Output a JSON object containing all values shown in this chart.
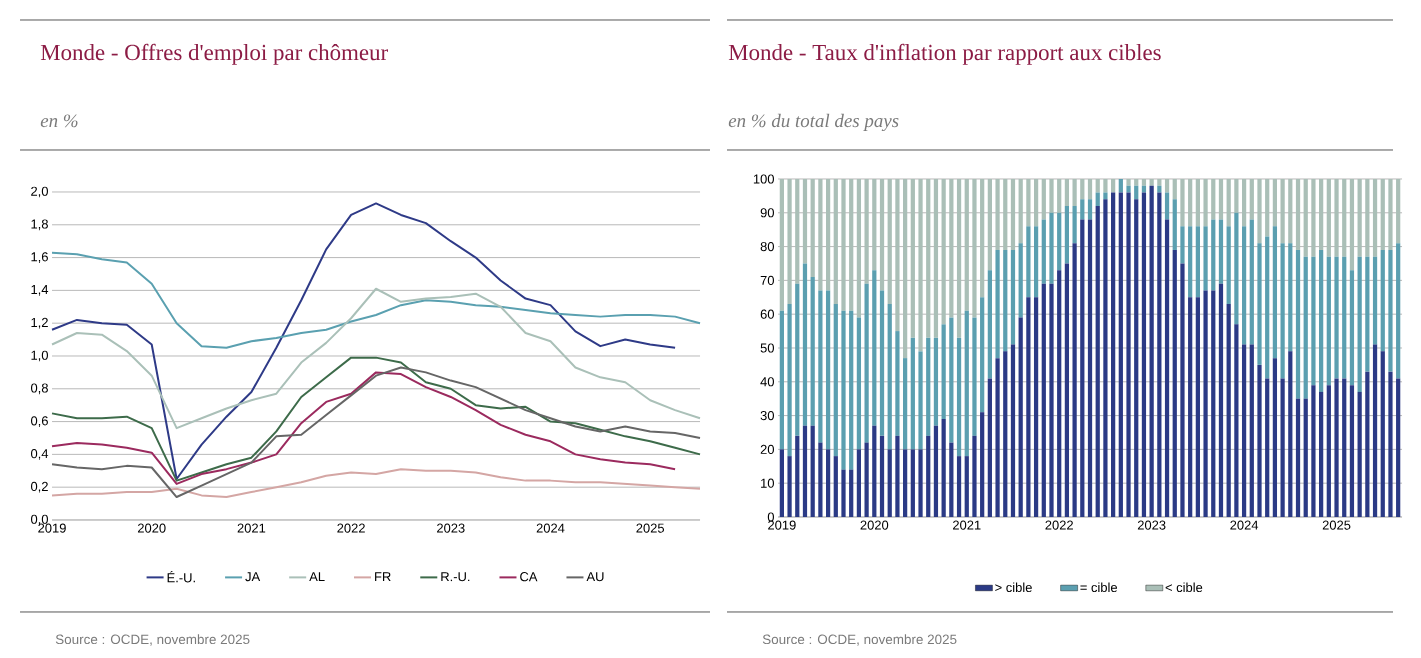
{
  "chart_data": [
    {
      "type": "line",
      "title": "Monde - Offres d'emploi par chômeur",
      "subtitle": "en %",
      "x": [
        2019,
        2019.25,
        2019.5,
        2019.75,
        2020,
        2020.25,
        2020.5,
        2020.75,
        2021,
        2021.25,
        2021.5,
        2021.75,
        2022,
        2022.25,
        2022.5,
        2022.75,
        2023,
        2023.25,
        2023.5,
        2023.75,
        2024,
        2024.25,
        2024.5,
        2024.75,
        2025,
        2025.25,
        2025.5
      ],
      "xlim": [
        2019,
        2025.5
      ],
      "xticks": [
        2019,
        2020,
        2021,
        2022,
        2023,
        2024,
        2025
      ],
      "ylim": [
        0,
        2
      ],
      "yticks": [
        {
          "value": 0,
          "label": "0,0"
        },
        {
          "value": 0.2,
          "label": "0,2"
        },
        {
          "value": 0.4,
          "label": "0,4"
        },
        {
          "value": 0.6,
          "label": "0,6"
        },
        {
          "value": 0.8,
          "label": "0,8"
        },
        {
          "value": 1,
          "label": "1,0"
        },
        {
          "value": 1.2,
          "label": "1,2"
        },
        {
          "value": 1.4,
          "label": "1,4"
        },
        {
          "value": 1.6,
          "label": "1,6"
        },
        {
          "value": 1.8,
          "label": "1,8"
        },
        {
          "value": 2,
          "label": "2,0"
        }
      ],
      "grid": "y",
      "legend": "bottom",
      "series": [
        {
          "name": "É.-U.",
          "color": "#2e3a87",
          "values": [
            1.16,
            1.22,
            1.2,
            1.19,
            1.07,
            0.25,
            0.46,
            0.63,
            0.78,
            1.05,
            1.34,
            1.65,
            1.86,
            1.93,
            1.86,
            1.81,
            1.7,
            1.6,
            1.46,
            1.35,
            1.31,
            1.15,
            1.06,
            1.1,
            1.07,
            1.05,
            null
          ]
        },
        {
          "name": "JA",
          "color": "#5aa0b0",
          "values": [
            1.63,
            1.62,
            1.59,
            1.57,
            1.44,
            1.2,
            1.06,
            1.05,
            1.09,
            1.11,
            1.14,
            1.16,
            1.21,
            1.25,
            1.31,
            1.34,
            1.33,
            1.31,
            1.3,
            1.28,
            1.26,
            1.25,
            1.24,
            1.25,
            1.25,
            1.24,
            1.2
          ]
        },
        {
          "name": "AL",
          "color": "#aac0b8",
          "values": [
            1.07,
            1.14,
            1.13,
            1.03,
            0.88,
            0.56,
            0.62,
            0.68,
            0.73,
            0.77,
            0.96,
            1.08,
            1.23,
            1.41,
            1.33,
            1.35,
            1.36,
            1.38,
            1.3,
            1.14,
            1.09,
            0.93,
            0.87,
            0.84,
            0.73,
            0.67,
            0.62
          ]
        },
        {
          "name": "FR",
          "color": "#d4a6a4",
          "values": [
            0.15,
            0.16,
            0.16,
            0.17,
            0.17,
            0.19,
            0.15,
            0.14,
            0.17,
            0.2,
            0.23,
            0.27,
            0.29,
            0.28,
            0.31,
            0.3,
            0.3,
            0.29,
            0.26,
            0.24,
            0.24,
            0.23,
            0.23,
            0.22,
            0.21,
            0.2,
            0.19
          ]
        },
        {
          "name": "R.-U.",
          "color": "#3d6b4a",
          "values": [
            0.65,
            0.62,
            0.62,
            0.63,
            0.56,
            0.24,
            0.29,
            0.34,
            0.38,
            0.54,
            0.75,
            0.87,
            0.99,
            0.99,
            0.96,
            0.84,
            0.8,
            0.7,
            0.68,
            0.69,
            0.6,
            0.59,
            0.55,
            0.51,
            0.48,
            0.44,
            0.4
          ]
        },
        {
          "name": "CA",
          "color": "#9b2a5e",
          "values": [
            0.45,
            0.47,
            0.46,
            0.44,
            0.41,
            0.22,
            0.28,
            0.31,
            0.35,
            0.4,
            0.59,
            0.72,
            0.77,
            0.9,
            0.89,
            0.81,
            0.75,
            0.67,
            0.58,
            0.52,
            0.48,
            0.4,
            0.37,
            0.35,
            0.34,
            0.31,
            null
          ]
        },
        {
          "name": "AU",
          "color": "#666666",
          "values": [
            0.34,
            0.32,
            0.31,
            0.33,
            0.32,
            0.14,
            0.21,
            0.28,
            0.35,
            0.51,
            0.52,
            0.64,
            0.76,
            0.88,
            0.93,
            0.9,
            0.85,
            0.81,
            0.74,
            0.67,
            0.62,
            0.57,
            0.54,
            0.57,
            0.54,
            0.53,
            0.5
          ]
        }
      ],
      "annotations": [
        "Source : OCDE, novembre 2025"
      ]
    },
    {
      "type": "bar",
      "stacked": true,
      "title": "Monde - Taux d'inflation par rapport aux cibles",
      "subtitle": "en % du total des pays",
      "categories": [
        "2019",
        null,
        null,
        null,
        null,
        null,
        null,
        null,
        null,
        null,
        null,
        null,
        "2020",
        null,
        null,
        null,
        null,
        null,
        null,
        null,
        null,
        null,
        null,
        null,
        "2021",
        null,
        null,
        null,
        null,
        null,
        null,
        null,
        null,
        null,
        null,
        null,
        "2022",
        null,
        null,
        null,
        null,
        null,
        null,
        null,
        null,
        null,
        null,
        null,
        "2023",
        null,
        null,
        null,
        null,
        null,
        null,
        null,
        null,
        null,
        null,
        null,
        "2024",
        null,
        null,
        null,
        null,
        null,
        null,
        null,
        null,
        null,
        null,
        null,
        "2025",
        null,
        null,
        null,
        null,
        null,
        null,
        null,
        null
      ],
      "ylim": [
        0,
        100
      ],
      "yticks": [
        0,
        10,
        20,
        30,
        40,
        50,
        60,
        70,
        80,
        90,
        100
      ],
      "grid": "y",
      "legend": "bottom",
      "series": [
        {
          "name": "> cible",
          "color": "#2b3a85",
          "values": [
            20,
            18,
            24,
            27,
            27,
            22,
            20,
            18,
            14,
            14,
            20,
            22,
            27,
            24,
            20,
            24,
            20,
            20,
            20,
            24,
            27,
            29,
            22,
            18,
            18,
            24,
            31,
            41,
            47,
            49,
            51,
            59,
            65,
            65,
            69,
            69,
            73,
            75,
            81,
            88,
            88,
            92,
            94,
            96,
            96,
            96,
            94,
            96,
            98,
            96,
            88,
            79,
            75,
            65,
            65,
            67,
            67,
            69,
            63,
            57,
            51,
            51,
            45,
            41,
            47,
            41,
            49,
            35,
            35,
            39,
            37,
            39,
            41,
            41,
            39,
            37,
            43,
            51,
            49,
            43,
            41
          ]
        },
        {
          "name": "= cible",
          "color": "#5b9fb0",
          "values": [
            41,
            45,
            45,
            48,
            44,
            45,
            47,
            45,
            47,
            47,
            39,
            47,
            46,
            43,
            43,
            31,
            27,
            33,
            29,
            29,
            26,
            28,
            37,
            35,
            43,
            35,
            34,
            32,
            32,
            30,
            28,
            22,
            21,
            21,
            19,
            21,
            17,
            17,
            11,
            6,
            6,
            4,
            2,
            0,
            4,
            2,
            4,
            2,
            0,
            2,
            8,
            15,
            11,
            21,
            21,
            19,
            21,
            19,
            23,
            33,
            35,
            37,
            36,
            42,
            39,
            40,
            32,
            44,
            42,
            38,
            42,
            38,
            36,
            36,
            34,
            40,
            34,
            26,
            30,
            36,
            40
          ]
        },
        {
          "name": "< cible",
          "color": "#aabfb7",
          "values": [
            39,
            37,
            31,
            25,
            29,
            33,
            33,
            37,
            39,
            39,
            41,
            31,
            27,
            33,
            37,
            45,
            53,
            47,
            51,
            47,
            47,
            43,
            41,
            47,
            39,
            41,
            35,
            27,
            21,
            21,
            21,
            19,
            14,
            14,
            12,
            10,
            10,
            8,
            8,
            6,
            6,
            4,
            4,
            4,
            0,
            2,
            2,
            2,
            2,
            2,
            4,
            6,
            14,
            14,
            14,
            14,
            12,
            12,
            14,
            10,
            14,
            12,
            19,
            17,
            14,
            19,
            19,
            21,
            23,
            23,
            21,
            23,
            23,
            23,
            27,
            23,
            23,
            23,
            21,
            21,
            19
          ]
        }
      ],
      "annotations": [
        "Source : OCDE, novembre 2025"
      ]
    }
  ]
}
